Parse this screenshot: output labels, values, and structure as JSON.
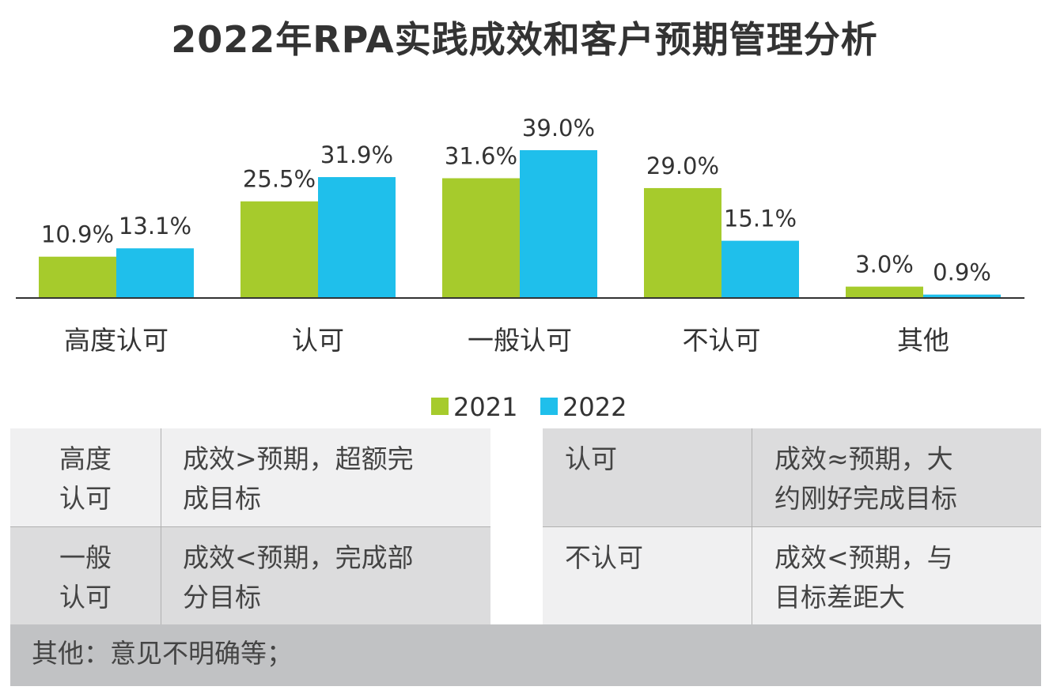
{
  "title": "2022年RPA实践成效和客户预期管理分析",
  "chart_data": {
    "type": "bar",
    "title": "2022年RPA实践成效和客户预期管理分析",
    "categories": [
      "高度认可",
      "认可",
      "一般认可",
      "不认可",
      "其他"
    ],
    "series": [
      {
        "name": "2021",
        "values": [
          10.9,
          25.5,
          31.6,
          29.0,
          3.0
        ],
        "color": "#a6cb2c"
      },
      {
        "name": "2022",
        "values": [
          13.1,
          31.9,
          39.0,
          15.1,
          0.9
        ],
        "color": "#1fbfeb"
      }
    ],
    "labels": [
      [
        "10.9%",
        "25.5%",
        "31.6%",
        "29.0%",
        "3.0%"
      ],
      [
        "13.1%",
        "31.9%",
        "39.0%",
        "15.1%",
        "0.9%"
      ]
    ],
    "ylim": [
      0,
      40
    ],
    "grid": false,
    "legend": "bottom",
    "xlabel": "",
    "ylabel": ""
  },
  "table": {
    "left": [
      {
        "term": "高度\n认可",
        "desc": "成效>预期，超额完\n成目标"
      },
      {
        "term": "一般\n认可",
        "desc": "成效<预期，完成部\n分目标"
      }
    ],
    "right": [
      {
        "term": "认可",
        "desc": "成效≈预期，大\n约刚好完成目标"
      },
      {
        "term": "不认可",
        "desc": "成效<预期，与\n目标差距大"
      }
    ],
    "footer": "其他：意见不明确等；"
  }
}
